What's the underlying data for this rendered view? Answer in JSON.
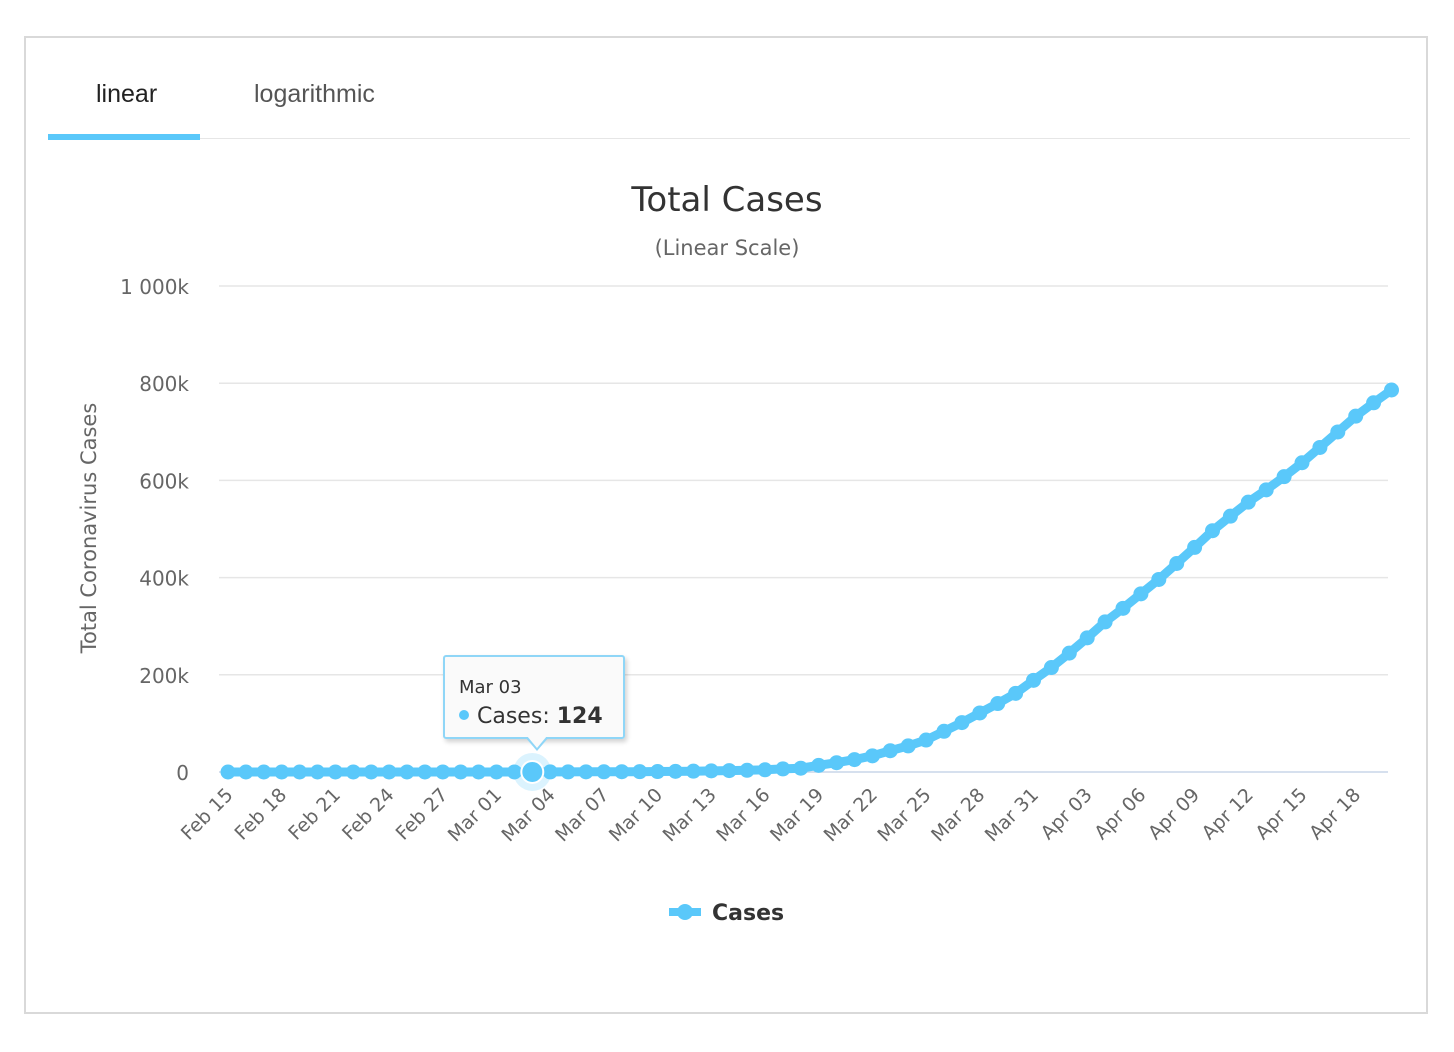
{
  "tabs": [
    {
      "label": "linear",
      "active": true
    },
    {
      "label": "logarithmic",
      "active": false
    }
  ],
  "colors": {
    "series": "#5ac8fa",
    "grid": "#e6e6e6",
    "text": "#666666"
  },
  "tooltip": {
    "date": "Mar 03",
    "series_label": "Cases",
    "value": "124"
  },
  "chart_data": {
    "type": "line",
    "title": "Total Cases",
    "subtitle": "(Linear Scale)",
    "ylabel": "Total Coronavirus Cases",
    "xlabel": "",
    "ylim": [
      0,
      1000000
    ],
    "yticks": [
      0,
      200000,
      400000,
      600000,
      800000,
      1000000
    ],
    "ytick_labels": [
      "0",
      "200k",
      "400k",
      "600k",
      "800k",
      "1 000k"
    ],
    "grid": true,
    "legend": "bottom-center",
    "xtick_labels": [
      "Feb 15",
      "Feb 18",
      "Feb 21",
      "Feb 24",
      "Feb 27",
      "Mar 01",
      "Mar 04",
      "Mar 07",
      "Mar 10",
      "Mar 13",
      "Mar 16",
      "Mar 19",
      "Mar 22",
      "Mar 25",
      "Mar 28",
      "Mar 31",
      "Apr 03",
      "Apr 06",
      "Apr 09",
      "Apr 12",
      "Apr 15",
      "Apr 18"
    ],
    "x": [
      "Feb 15",
      "Feb 16",
      "Feb 17",
      "Feb 18",
      "Feb 19",
      "Feb 20",
      "Feb 21",
      "Feb 22",
      "Feb 23",
      "Feb 24",
      "Feb 25",
      "Feb 26",
      "Feb 27",
      "Feb 28",
      "Feb 29",
      "Mar 01",
      "Mar 02",
      "Mar 03",
      "Mar 04",
      "Mar 05",
      "Mar 06",
      "Mar 07",
      "Mar 08",
      "Mar 09",
      "Mar 10",
      "Mar 11",
      "Mar 12",
      "Mar 13",
      "Mar 14",
      "Mar 15",
      "Mar 16",
      "Mar 17",
      "Mar 18",
      "Mar 19",
      "Mar 20",
      "Mar 21",
      "Mar 22",
      "Mar 23",
      "Mar 24",
      "Mar 25",
      "Mar 26",
      "Mar 27",
      "Mar 28",
      "Mar 29",
      "Mar 30",
      "Mar 31",
      "Apr 01",
      "Apr 02",
      "Apr 03",
      "Apr 04",
      "Apr 05",
      "Apr 06",
      "Apr 07",
      "Apr 08",
      "Apr 09",
      "Apr 10",
      "Apr 11",
      "Apr 12",
      "Apr 13",
      "Apr 14",
      "Apr 15",
      "Apr 16",
      "Apr 17",
      "Apr 18",
      "Apr 19",
      "Apr 20"
    ],
    "series": [
      {
        "name": "Cases",
        "values": [
          15,
          15,
          15,
          15,
          15,
          15,
          35,
          35,
          53,
          57,
          60,
          60,
          65,
          70,
          70,
          75,
          100,
          124,
          160,
          220,
          320,
          450,
          540,
          700,
          1000,
          1300,
          1700,
          2300,
          2900,
          3500,
          4600,
          6400,
          7800,
          13700,
          19100,
          25500,
          33300,
          43800,
          53700,
          65800,
          83800,
          101700,
          121500,
          140900,
          161800,
          188600,
          215000,
          244600,
          276000,
          308800,
          336800,
          366600,
          396200,
          429000,
          462100,
          496500,
          526400,
          555300,
          580600,
          607700,
          636300,
          667800,
          699700,
          732200,
          759700,
          786000
        ]
      }
    ]
  }
}
